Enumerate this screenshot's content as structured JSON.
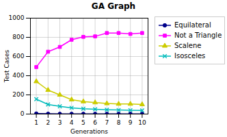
{
  "chart_data": {
    "type": "line",
    "title": "GA Graph",
    "xlabel": "Generations",
    "ylabel": "Test Cases",
    "x": [
      1,
      2,
      3,
      4,
      5,
      6,
      7,
      8,
      9,
      10
    ],
    "series": [
      {
        "name": "Equilateral",
        "color": "#00008B",
        "marker": "circle",
        "values": [
          5,
          3,
          2,
          2,
          2,
          2,
          2,
          2,
          2,
          2
        ]
      },
      {
        "name": "Not a Triangle",
        "color": "#FF00FF",
        "marker": "square",
        "values": [
          490,
          650,
          700,
          775,
          805,
          810,
          845,
          845,
          835,
          845
        ]
      },
      {
        "name": "Scalene",
        "color": "#CCCC00",
        "marker": "triangle",
        "values": [
          340,
          250,
          200,
          150,
          130,
          120,
          110,
          105,
          105,
          100
        ]
      },
      {
        "name": "Isosceles",
        "color": "#00BBBB",
        "marker": "times",
        "values": [
          155,
          100,
          80,
          65,
          55,
          50,
          45,
          42,
          40,
          38
        ]
      }
    ],
    "xlim": [
      0.5,
      10.5
    ],
    "xticks": [
      1,
      2,
      3,
      4,
      5,
      6,
      7,
      8,
      9,
      10
    ],
    "ylim": [
      0,
      1000
    ],
    "yticks": [
      0,
      200,
      400,
      600,
      800,
      1000
    ],
    "grid": true,
    "legend": "right"
  }
}
